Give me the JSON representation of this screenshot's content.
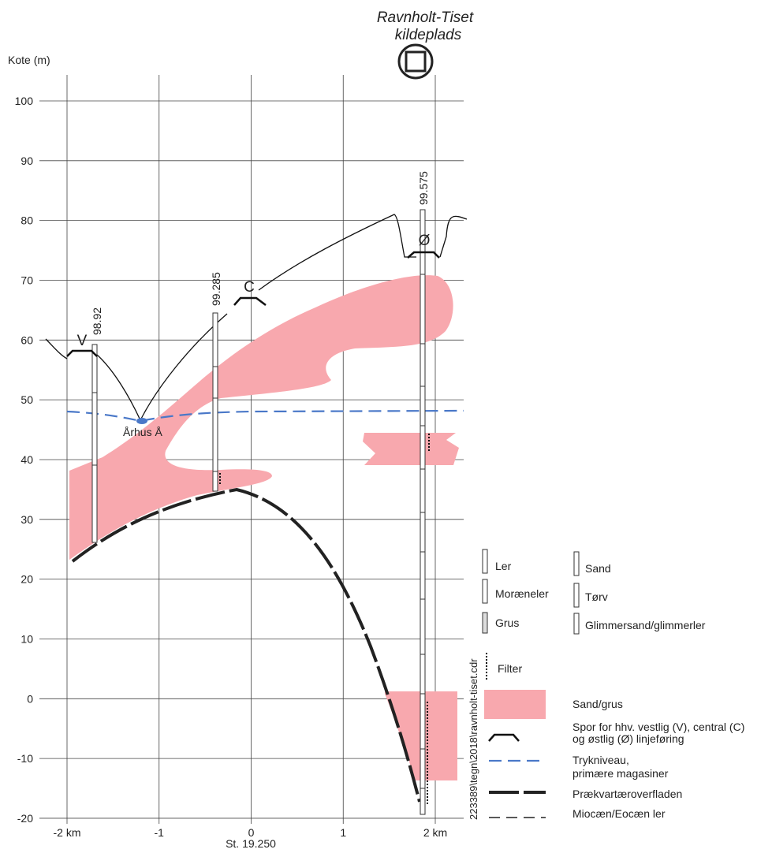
{
  "axis": {
    "y_title": "Kote (m)",
    "y_ticks": [
      "100",
      "90",
      "80",
      "70",
      "60",
      "50",
      "40",
      "30",
      "20",
      "10",
      "0",
      "-10",
      "-20"
    ],
    "x_ticks": [
      "-2 km",
      "-1",
      "0",
      "1",
      "2 km"
    ],
    "x_subtitle": "St. 19.250"
  },
  "site": {
    "name": "Ravnholt-Tiset",
    "subtitle": "kildeplads"
  },
  "boreholes": [
    "98.92",
    "99.285",
    "99.575"
  ],
  "profile_labels": [
    "V",
    "C",
    "Ø"
  ],
  "river": "Århus Å",
  "legend": {
    "lithology": [
      "Ler",
      "Sand",
      "Moræneler",
      "Tørv",
      "Grus",
      "Glimmersand/glimmerler"
    ],
    "filter": "Filter",
    "sand": "Sand/grus",
    "track": [
      "Spor for hhv. vestlig (V), central (C)",
      "og østlig (Ø) linjeføring"
    ],
    "pressure": [
      "Trykniveau,",
      "primære magasiner"
    ],
    "prequaternary": "Prækvartæroverfladen",
    "clay": "Miocæn/Eocæn ler"
  },
  "file_ref": "223389\\tegn\\2018\\ravnholt-tiset.cdr"
}
